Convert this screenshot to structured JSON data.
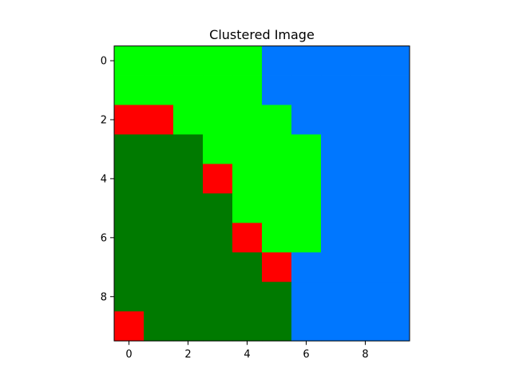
{
  "chart_data": {
    "type": "heatmap",
    "title": "Clustered Image",
    "xlabel": "",
    "ylabel": "",
    "xlim": [
      -0.5,
      9.5
    ],
    "ylim": [
      9.5,
      -0.5
    ],
    "x_ticks": [
      0,
      2,
      4,
      6,
      8
    ],
    "y_ticks": [
      0,
      2,
      4,
      6,
      8
    ],
    "grid": false,
    "legend": "none",
    "palette": {
      "0": "#007a00",
      "1": "#00ff00",
      "2": "#0077ff",
      "3": "#ff0000"
    },
    "cluster_labels": [
      [
        1,
        1,
        1,
        1,
        1,
        2,
        2,
        2,
        2,
        2
      ],
      [
        1,
        1,
        1,
        1,
        1,
        2,
        2,
        2,
        2,
        2
      ],
      [
        3,
        3,
        1,
        1,
        1,
        1,
        2,
        2,
        2,
        2
      ],
      [
        0,
        0,
        0,
        1,
        1,
        1,
        1,
        2,
        2,
        2
      ],
      [
        0,
        0,
        0,
        3,
        1,
        1,
        1,
        2,
        2,
        2
      ],
      [
        0,
        0,
        0,
        0,
        1,
        1,
        1,
        2,
        2,
        2
      ],
      [
        0,
        0,
        0,
        0,
        3,
        1,
        1,
        2,
        2,
        2
      ],
      [
        0,
        0,
        0,
        0,
        0,
        3,
        2,
        2,
        2,
        2
      ],
      [
        0,
        0,
        0,
        0,
        0,
        0,
        2,
        2,
        2,
        2
      ],
      [
        3,
        0,
        0,
        0,
        0,
        0,
        2,
        2,
        2,
        2
      ]
    ]
  }
}
